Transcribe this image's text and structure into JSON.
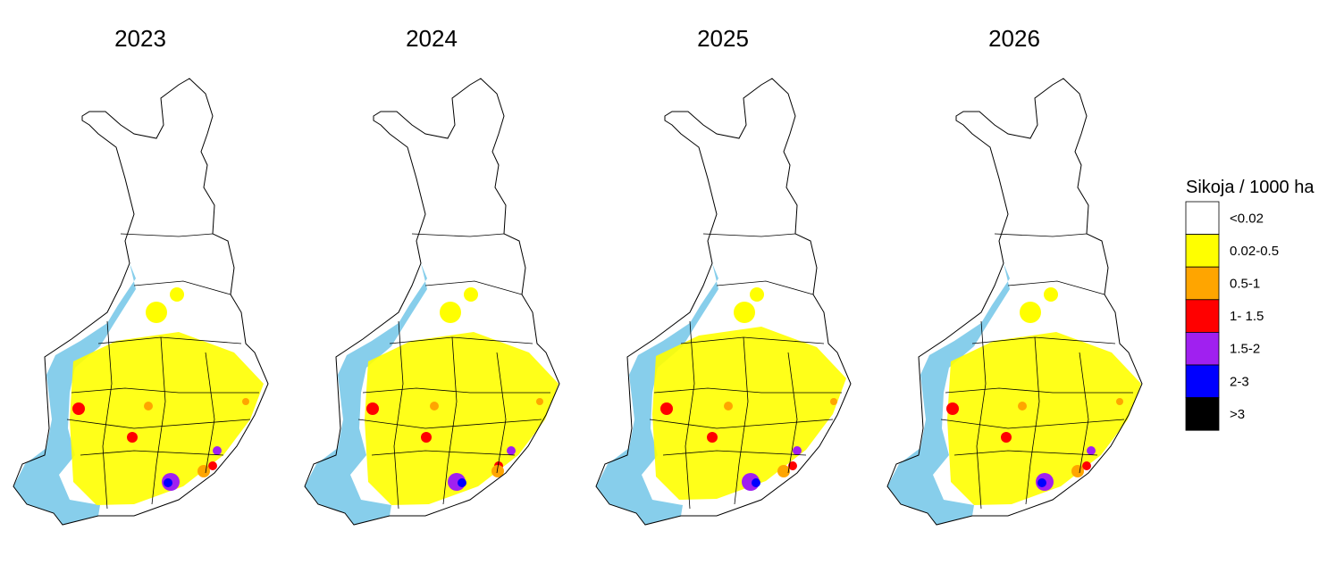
{
  "maps": [
    {
      "title": "2023"
    },
    {
      "title": "2024"
    },
    {
      "title": "2025"
    },
    {
      "title": "2026"
    }
  ],
  "legend": {
    "title": "Sikoja / 1000 ha",
    "items": [
      {
        "label": "<0.02",
        "color": "#ffffff"
      },
      {
        "label": "0.02-0.5",
        "color": "#ffff00"
      },
      {
        "label": "0.5-1",
        "color": "#ffa500"
      },
      {
        "label": "1- 1.5",
        "color": "#ff0000"
      },
      {
        "label": "1.5-2",
        "color": "#a020f0"
      },
      {
        "label": "2-3",
        "color": "#0000ff"
      },
      {
        "label": ">3",
        "color": "#000000"
      }
    ]
  }
}
